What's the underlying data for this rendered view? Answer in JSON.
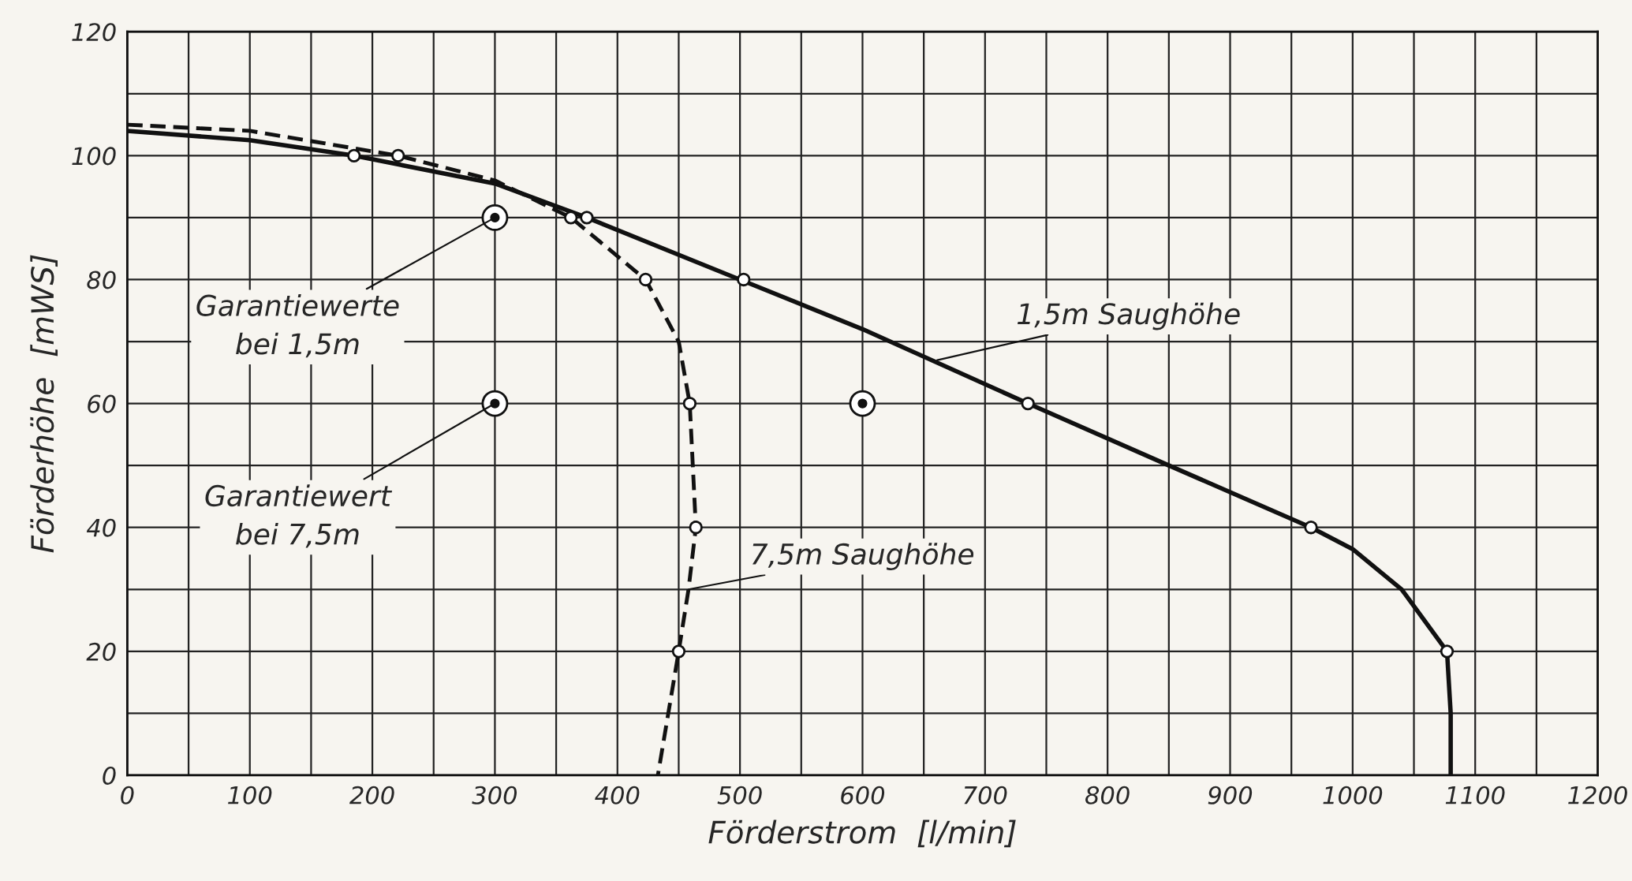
{
  "chart_data": {
    "type": "line",
    "xlabel": "Förderstrom  [l/min]",
    "ylabel": "Förderhöhe  [mWS]",
    "xlim": [
      0,
      1200
    ],
    "ylim": [
      0,
      120
    ],
    "xticks": [
      0,
      {
        "value": 50,
        "label": null
      },
      100,
      {
        "value": 150,
        "label": null
      },
      200,
      {
        "value": 250,
        "label": null
      },
      300,
      {
        "value": 350,
        "label": null
      },
      400,
      {
        "value": 450,
        "label": null
      },
      500,
      {
        "value": 550,
        "label": null
      },
      600,
      {
        "value": 650,
        "label": null
      },
      700,
      {
        "value": 750,
        "label": null
      },
      800,
      {
        "value": 850,
        "label": null
      },
      900,
      {
        "value": 950,
        "label": null
      },
      1000,
      {
        "value": 1050,
        "label": null
      },
      1100,
      {
        "value": 1150,
        "label": null
      },
      1200
    ],
    "yticks": [
      0,
      {
        "value": 10,
        "label": null
      },
      20,
      {
        "value": 30,
        "label": null
      },
      40,
      {
        "value": 50,
        "label": null
      },
      60,
      {
        "value": 70,
        "label": null
      },
      80,
      {
        "value": 90,
        "label": null
      },
      100,
      {
        "value": 110,
        "label": null
      },
      120
    ],
    "grid": true,
    "legend": false,
    "series": [
      {
        "type": "line",
        "line_style": "solid",
        "color": "#111111",
        "x": [
          0,
          100,
          185,
          300,
          375,
          500,
          600,
          735,
          850,
          966,
          1000,
          1040,
          1077,
          1080,
          1080
        ],
        "values": [
          104,
          102.5,
          100,
          95.5,
          90,
          80,
          72,
          60,
          50,
          40,
          36.5,
          30,
          20,
          10,
          0
        ]
      },
      {
        "type": "line",
        "line_style": "dashed",
        "color": "#111111",
        "x": [
          0,
          100,
          221,
          300,
          362,
          423,
          450,
          459,
          464,
          458,
          450,
          433
        ],
        "values": [
          105,
          104,
          100,
          96,
          90,
          80,
          70,
          60,
          40,
          30,
          20,
          0
        ]
      },
      {
        "type": "scatter",
        "marker": "circle",
        "color": "#111111",
        "x": [
          185,
          375,
          503,
          735,
          966,
          1077,
          221,
          362,
          423,
          459,
          464,
          450
        ],
        "values": [
          100,
          90,
          80,
          60,
          40,
          20,
          100,
          90,
          80,
          60,
          40,
          20
        ]
      },
      {
        "type": "scatter",
        "marker": "circle",
        "color": "#111111",
        "x": [
          300,
          600,
          300
        ],
        "values": [
          90,
          60,
          60
        ]
      }
    ],
    "annotations": [
      {
        "text": "Garantiewerte\nbei 1,5m",
        "x": 300,
        "y": 90
      },
      {
        "text": "Garantiewert\nbei 7,5m",
        "x": 300,
        "y": 60
      },
      {
        "text": "1,5m Saughöhe",
        "x": 661,
        "y": 67
      },
      {
        "text": "7,5m Saughöhe",
        "x": 458,
        "y": 30
      }
    ]
  }
}
